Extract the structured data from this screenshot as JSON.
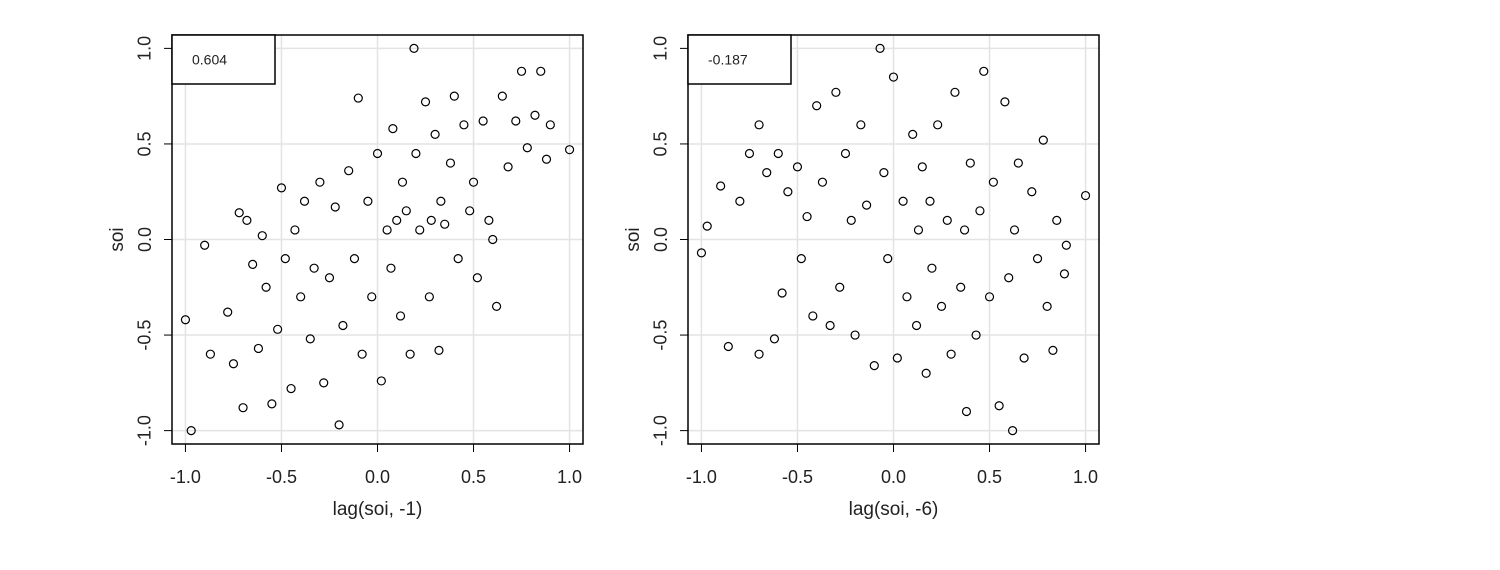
{
  "chart_data": [
    {
      "type": "scatter",
      "annotation": "0.604",
      "xlabel": "lag(soi, -1)",
      "ylabel": "soi",
      "color": "#000000",
      "grid": true,
      "xlim": [
        -1.07,
        1.07
      ],
      "ylim": [
        -1.07,
        1.07
      ],
      "xticks": [
        {
          "value": -1,
          "label": "-1.0"
        },
        {
          "value": -0.5,
          "label": "-0.5"
        },
        {
          "value": 0,
          "label": "0.0"
        },
        {
          "value": 0.5,
          "label": "0.5"
        },
        {
          "value": 1,
          "label": "1.0"
        }
      ],
      "yticks": [
        {
          "value": -1,
          "label": "-1.0"
        },
        {
          "value": -0.5,
          "label": "-0.5"
        },
        {
          "value": 0,
          "label": "0.0"
        },
        {
          "value": 0.5,
          "label": "0.5"
        },
        {
          "value": 1,
          "label": "1.0"
        }
      ],
      "x": [
        -1.0,
        -0.97,
        -0.9,
        -0.87,
        -0.78,
        -0.75,
        -0.72,
        -0.7,
        -0.68,
        -0.65,
        -0.62,
        -0.6,
        -0.58,
        -0.55,
        -0.52,
        -0.5,
        -0.48,
        -0.45,
        -0.43,
        -0.4,
        -0.38,
        -0.35,
        -0.33,
        -0.3,
        -0.28,
        -0.25,
        -0.22,
        -0.2,
        -0.18,
        -0.15,
        -0.12,
        -0.1,
        -0.08,
        -0.05,
        -0.03,
        0.0,
        0.02,
        0.05,
        0.07,
        0.08,
        0.1,
        0.12,
        0.13,
        0.15,
        0.17,
        0.19,
        0.2,
        0.22,
        0.25,
        0.27,
        0.28,
        0.3,
        0.32,
        0.33,
        0.35,
        0.38,
        0.4,
        0.42,
        0.45,
        0.48,
        0.5,
        0.52,
        0.55,
        0.58,
        0.6,
        0.62,
        0.65,
        0.68,
        0.72,
        0.75,
        0.78,
        0.82,
        0.85,
        0.88,
        0.9,
        1.0
      ],
      "y": [
        -0.42,
        -1.0,
        -0.03,
        -0.6,
        -0.38,
        -0.65,
        0.14,
        -0.88,
        0.1,
        -0.13,
        -0.57,
        0.02,
        -0.25,
        -0.86,
        -0.47,
        0.27,
        -0.1,
        -0.78,
        0.05,
        -0.3,
        0.2,
        -0.52,
        -0.15,
        0.3,
        -0.75,
        -0.2,
        0.17,
        -0.97,
        -0.45,
        0.36,
        -0.1,
        0.74,
        -0.6,
        0.2,
        -0.3,
        0.45,
        -0.74,
        0.05,
        -0.15,
        0.58,
        0.1,
        -0.4,
        0.3,
        0.15,
        -0.6,
        1.0,
        0.45,
        0.05,
        0.72,
        -0.3,
        0.1,
        0.55,
        -0.58,
        0.2,
        0.08,
        0.4,
        0.75,
        -0.1,
        0.6,
        0.15,
        0.3,
        -0.2,
        0.62,
        0.1,
        0.0,
        -0.35,
        0.75,
        0.38,
        0.62,
        0.88,
        0.48,
        0.65,
        0.88,
        0.42,
        0.6,
        0.47
      ]
    },
    {
      "type": "scatter",
      "annotation": "-0.187",
      "xlabel": "lag(soi, -6)",
      "ylabel": "soi",
      "color": "#000000",
      "grid": true,
      "xlim": [
        -1.07,
        1.07
      ],
      "ylim": [
        -1.07,
        1.07
      ],
      "xticks": [
        {
          "value": -1,
          "label": "-1.0"
        },
        {
          "value": -0.5,
          "label": "-0.5"
        },
        {
          "value": 0,
          "label": "0.0"
        },
        {
          "value": 0.5,
          "label": "0.5"
        },
        {
          "value": 1,
          "label": "1.0"
        }
      ],
      "yticks": [
        {
          "value": -1,
          "label": "-1.0"
        },
        {
          "value": -0.5,
          "label": "-0.5"
        },
        {
          "value": 0,
          "label": "0.0"
        },
        {
          "value": 0.5,
          "label": "0.5"
        },
        {
          "value": 1,
          "label": "1.0"
        }
      ],
      "x": [
        -1.0,
        -0.97,
        -0.9,
        -0.86,
        -0.8,
        -0.75,
        -0.7,
        -0.7,
        -0.66,
        -0.62,
        -0.6,
        -0.58,
        -0.55,
        -0.5,
        -0.48,
        -0.45,
        -0.42,
        -0.4,
        -0.37,
        -0.33,
        -0.3,
        -0.28,
        -0.25,
        -0.22,
        -0.2,
        -0.17,
        -0.14,
        -0.1,
        -0.07,
        -0.05,
        -0.03,
        0.0,
        0.02,
        0.05,
        0.07,
        0.1,
        0.12,
        0.13,
        0.15,
        0.17,
        0.19,
        0.2,
        0.23,
        0.25,
        0.28,
        0.3,
        0.32,
        0.35,
        0.37,
        0.38,
        0.4,
        0.43,
        0.45,
        0.47,
        0.5,
        0.52,
        0.55,
        0.58,
        0.6,
        0.62,
        0.63,
        0.65,
        0.68,
        0.72,
        0.75,
        0.78,
        0.8,
        0.83,
        0.85,
        0.89,
        0.9,
        1.0
      ],
      "y": [
        -0.07,
        0.07,
        0.28,
        -0.56,
        0.2,
        0.45,
        0.6,
        -0.6,
        0.35,
        -0.52,
        0.45,
        -0.28,
        0.25,
        0.38,
        -0.1,
        0.12,
        -0.4,
        0.7,
        0.3,
        -0.45,
        0.77,
        -0.25,
        0.45,
        0.1,
        -0.5,
        0.6,
        0.18,
        -0.66,
        1.0,
        0.35,
        -0.1,
        0.85,
        -0.62,
        0.2,
        -0.3,
        0.55,
        -0.45,
        0.05,
        0.38,
        -0.7,
        0.2,
        -0.15,
        0.6,
        -0.35,
        0.1,
        -0.6,
        0.77,
        -0.25,
        0.05,
        -0.9,
        0.4,
        -0.5,
        0.15,
        0.88,
        -0.3,
        0.3,
        -0.87,
        0.72,
        -0.2,
        -1.0,
        0.05,
        0.4,
        -0.62,
        0.25,
        -0.1,
        0.52,
        -0.35,
        -0.58,
        0.1,
        -0.18,
        -0.03,
        0.23
      ]
    }
  ]
}
